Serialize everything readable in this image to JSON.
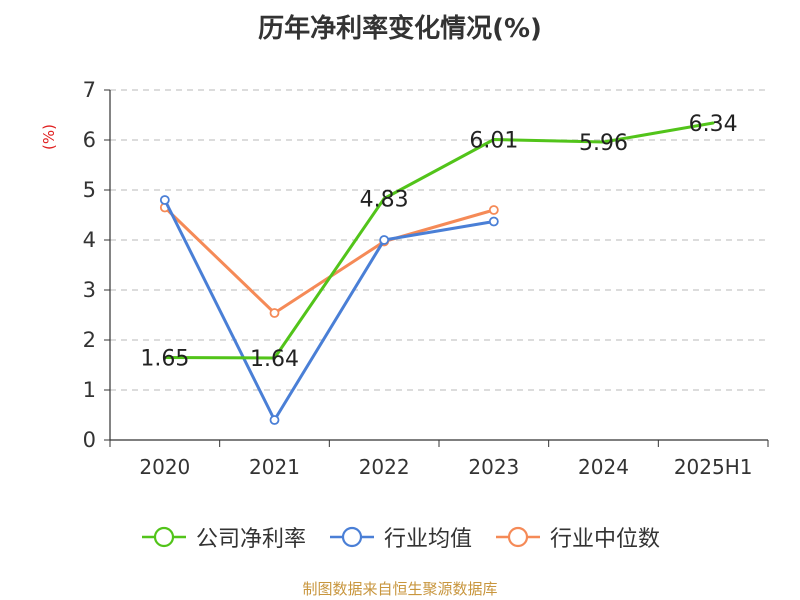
{
  "title": "历年净利率变化情况(%)",
  "unit_label": "(%)",
  "source": "制图数据来自恒生聚源数据库",
  "colors": {
    "company": "#52c41a",
    "industry_avg": "#4a7fd6",
    "industry_median": "#f58a57",
    "grid": "#c8c8c8",
    "axis": "#333333"
  },
  "chart_data": {
    "type": "line",
    "title": "历年净利率变化情况(%)",
    "ylabel": "(%)",
    "ylim": [
      0,
      7
    ],
    "yticks": [
      0,
      1,
      2,
      3,
      4,
      5,
      6,
      7
    ],
    "grid": true,
    "legend_position": "bottom",
    "categories": [
      "2020",
      "2021",
      "2022",
      "2023",
      "2024",
      "2025H1"
    ],
    "series": [
      {
        "name": "公司净利率",
        "color": "#52c41a",
        "values": [
          1.65,
          1.64,
          4.83,
          6.01,
          5.96,
          6.34
        ],
        "labels": [
          "1.65",
          "1.64",
          "4.83",
          "6.01",
          "5.96",
          "6.34"
        ],
        "markers": false
      },
      {
        "name": "行业均值",
        "color": "#4a7fd6",
        "values": [
          4.8,
          0.4,
          4.0,
          4.37,
          null,
          null
        ],
        "markers": true
      },
      {
        "name": "行业中位数",
        "color": "#f58a57",
        "values": [
          4.65,
          2.54,
          3.97,
          4.6,
          null,
          null
        ],
        "markers": true
      }
    ]
  }
}
